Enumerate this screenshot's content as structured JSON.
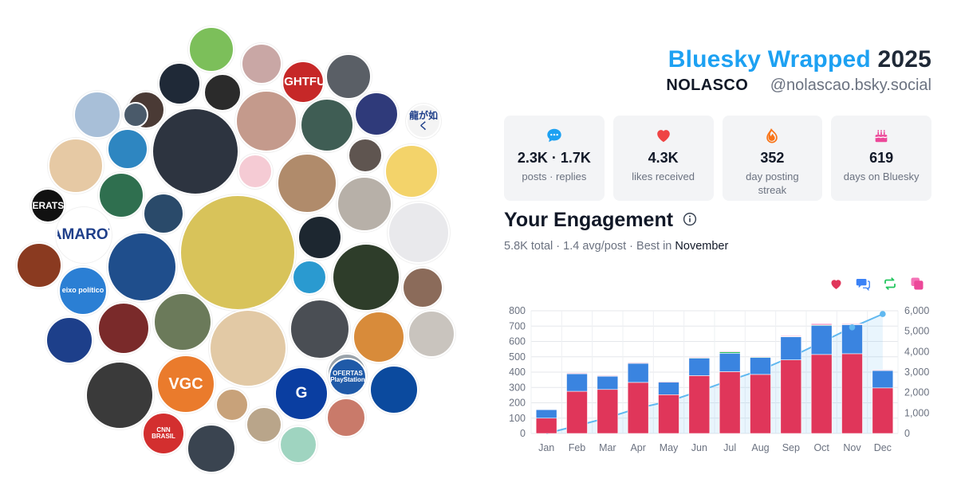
{
  "header": {
    "app_name": "Bluesky Wrapped",
    "year": "2025",
    "display_name": "NOLASCO",
    "handle": "@nolascao.bsky.social"
  },
  "stats": [
    {
      "icon": "speech-bubble-icon",
      "value": "2.3K · 1.7K",
      "label": "posts · replies",
      "color": "#1da1f2"
    },
    {
      "icon": "heart-icon",
      "value": "4.3K",
      "label": "likes received",
      "color": "#ef4444"
    },
    {
      "icon": "flame-icon",
      "value": "352",
      "label": "day posting streak",
      "color": "#f97316"
    },
    {
      "icon": "cake-icon",
      "value": "619",
      "label": "days on Bluesky",
      "color": "#ec4899"
    }
  ],
  "engagement": {
    "title": "Your Engagement",
    "info_icon": "info-icon",
    "total": "5.8K total",
    "avg": "1.4 avg/post",
    "best_prefix": "Best in",
    "best_month": "November",
    "legend_icons": [
      {
        "icon": "heart-icon",
        "color": "#e0365a"
      },
      {
        "icon": "reply-icon",
        "color": "#3b82f6"
      },
      {
        "icon": "repost-icon",
        "color": "#22c55e"
      },
      {
        "icon": "quote-icon",
        "color": "#ec4899"
      }
    ]
  },
  "avatars": [
    {
      "bg": "#7cbf5a",
      "label": ""
    },
    {
      "bg": "#c9a7a5",
      "label": ""
    },
    {
      "bg": "#1f2937",
      "label": ""
    },
    {
      "bg": "#c62828",
      "label": "FIGHTFUL"
    },
    {
      "bg": "#5a5f66",
      "label": ""
    },
    {
      "bg": "#2b2b2b",
      "label": ""
    },
    {
      "bg": "#a8bfd8",
      "label": ""
    },
    {
      "bg": "#4a3a35",
      "label": ""
    },
    {
      "bg": "#c49a8c",
      "label": ""
    },
    {
      "bg": "#3f5d54",
      "label": ""
    },
    {
      "bg": "#2f3a7a",
      "label": ""
    },
    {
      "bg": "#f4f4f4",
      "label": "龍が如く"
    },
    {
      "bg": "#e6c9a4",
      "label": ""
    },
    {
      "bg": "#2d3440",
      "label": ""
    },
    {
      "bg": "#2e86c1",
      "label": ""
    },
    {
      "bg": "#f5cbd4",
      "label": ""
    },
    {
      "bg": "#5f5550",
      "label": ""
    },
    {
      "bg": "#f3d36a",
      "label": ""
    },
    {
      "bg": "#b08b6b",
      "label": ""
    },
    {
      "bg": "#2a4a6a",
      "label": ""
    },
    {
      "bg": "#2f6f4f",
      "label": ""
    },
    {
      "bg": "#d8c35a",
      "label": ""
    },
    {
      "bg": "#b7b0a8",
      "label": ""
    },
    {
      "bg": "#111111",
      "label": "GERATSU"
    },
    {
      "bg": "#1d2730",
      "label": ""
    },
    {
      "bg": "#e9e9ec",
      "label": ""
    },
    {
      "bg": "#ffffff",
      "label": "CAMAROTE"
    },
    {
      "bg": "#1f4e8c",
      "label": ""
    },
    {
      "bg": "#2e3d2a",
      "label": ""
    },
    {
      "bg": "#2b7fd4",
      "label": "eixo político"
    },
    {
      "bg": "#2a9ad0",
      "label": ""
    },
    {
      "bg": "#8a3a20",
      "label": ""
    },
    {
      "bg": "#8b6b5a",
      "label": ""
    },
    {
      "bg": "#1d3f8a",
      "label": ""
    },
    {
      "bg": "#7a2a2a",
      "label": ""
    },
    {
      "bg": "#6b7a5a",
      "label": ""
    },
    {
      "bg": "#e2c9a5",
      "label": ""
    },
    {
      "bg": "#4a4e54",
      "label": ""
    },
    {
      "bg": "#d88b3a",
      "label": ""
    },
    {
      "bg": "#c9c4be",
      "label": ""
    },
    {
      "bg": "#9aa3ab",
      "label": ""
    },
    {
      "bg": "#0b4a9e",
      "label": ""
    },
    {
      "bg": "#3a3a3a",
      "label": ""
    },
    {
      "bg": "#ea7b2c",
      "label": "VGC"
    },
    {
      "bg": "#0a3ea1",
      "label": "G"
    },
    {
      "bg": "#1f5aa8",
      "label": "OFERTAS PlayStation"
    },
    {
      "bg": "#c8a27a",
      "label": ""
    },
    {
      "bg": "#d32f2f",
      "label": "CNN BRASIL"
    },
    {
      "bg": "#c97a6a",
      "label": ""
    },
    {
      "bg": "#b9a58a",
      "label": ""
    },
    {
      "bg": "#3a4450",
      "label": ""
    },
    {
      "bg": "#9fd4c0",
      "label": ""
    },
    {
      "bg": "#4a5a6a",
      "label": ""
    }
  ],
  "chart_data": {
    "type": "bar",
    "categories": [
      "Jan",
      "Feb",
      "Mar",
      "Apr",
      "May",
      "Jun",
      "Jul",
      "Aug",
      "Sep",
      "Oct",
      "Nov",
      "Dec"
    ],
    "series": [
      {
        "name": "likes",
        "color": "#e0365a",
        "values": [
          100,
          275,
          287,
          333,
          253,
          377,
          403,
          385,
          480,
          515,
          520,
          297
        ]
      },
      {
        "name": "replies",
        "color": "#3a84e0",
        "values": [
          55,
          115,
          88,
          125,
          83,
          115,
          120,
          110,
          150,
          190,
          190,
          115
        ]
      },
      {
        "name": "reposts",
        "color": "#22c55e",
        "values": [
          0,
          3,
          2,
          3,
          2,
          3,
          10,
          5,
          5,
          3,
          3,
          2
        ]
      },
      {
        "name": "quotes",
        "color": "#ec4899",
        "values": [
          0,
          2,
          2,
          2,
          1,
          3,
          3,
          3,
          2,
          7,
          2,
          1
        ]
      }
    ],
    "cumulative": {
      "color": "#60b8f0",
      "values": [
        0,
        380,
        770,
        1240,
        1570,
        2070,
        2600,
        3100,
        3740,
        4460,
        5190,
        5840
      ]
    },
    "y_left": {
      "min": 0,
      "max": 800,
      "ticks": [
        "0",
        "100",
        "200",
        "300",
        "400",
        "500",
        "600",
        "700",
        "800"
      ]
    },
    "y_right": {
      "min": 0,
      "max": 6000,
      "ticks": [
        "0",
        "1,000",
        "2,000",
        "3,000",
        "4,000",
        "5,000",
        "6,000"
      ]
    },
    "grid": true,
    "legend": "top-right"
  }
}
